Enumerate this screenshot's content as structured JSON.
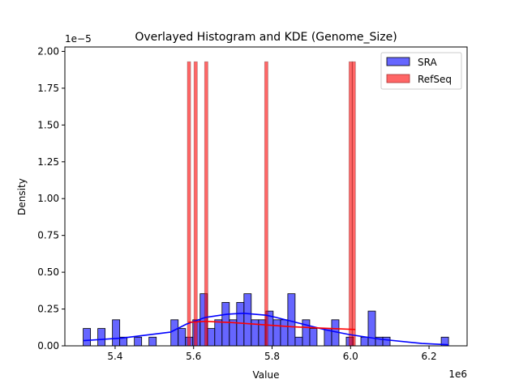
{
  "chart_data": {
    "type": "bar",
    "title": "Overlayed Histogram and KDE (Genome_Size)",
    "xlabel": "Value",
    "ylabel": "Density",
    "x_offset_label": "1e6",
    "y_offset_label": "1e−5",
    "xlim": [
      5.272,
      6.297
    ],
    "ylim": [
      0,
      2.03
    ],
    "xticks": [
      "5.4",
      "5.6",
      "5.8",
      "6.0",
      "6.2"
    ],
    "xtick_values": [
      5.4,
      5.6,
      5.8,
      6.0,
      6.2
    ],
    "yticks": [
      "0.00",
      "0.25",
      "0.50",
      "0.75",
      "1.00",
      "1.25",
      "1.50",
      "1.75",
      "2.00"
    ],
    "ytick_values": [
      0,
      0.25,
      0.5,
      0.75,
      1.0,
      1.25,
      1.5,
      1.75,
      2.0
    ],
    "grid": false,
    "legend_position": "top-right",
    "series": [
      {
        "name": "SRA",
        "color": "#0000ff",
        "bin_start": 5.3187,
        "bin_width": 0.01862,
        "density": [
          0.118,
          0,
          0.118,
          0,
          0.177,
          0.059,
          0,
          0.059,
          0,
          0.059,
          0,
          0,
          0.177,
          0.118,
          0.059,
          0.177,
          0.354,
          0.118,
          0.177,
          0.295,
          0.177,
          0.295,
          0.354,
          0.177,
          0.177,
          0.236,
          0.177,
          0.177,
          0.354,
          0.059,
          0.177,
          0.118,
          0,
          0.118,
          0.177,
          0,
          0.059,
          0,
          0.059,
          0.236,
          0.059,
          0.059,
          0,
          0,
          0,
          0,
          0,
          0,
          0,
          0.059
        ],
        "kde": [
          [
            5.319,
            0.035
          ],
          [
            5.417,
            0.053
          ],
          [
            5.541,
            0.093
          ],
          [
            5.582,
            0.148
          ],
          [
            5.63,
            0.193
          ],
          [
            5.686,
            0.215
          ],
          [
            5.727,
            0.221
          ],
          [
            5.785,
            0.208
          ],
          [
            5.81,
            0.193
          ],
          [
            5.878,
            0.148
          ],
          [
            5.934,
            0.11
          ],
          [
            5.996,
            0.077
          ],
          [
            6.079,
            0.044
          ],
          [
            6.182,
            0.016
          ],
          [
            6.25,
            0.007
          ]
        ]
      },
      {
        "name": "RefSeq",
        "color": "#ff0000",
        "bin_width": 0.0086,
        "bar_lefts": [
          5.584,
          5.601,
          5.628,
          5.781,
          5.996,
          6.004
        ],
        "bar_density": 1.93,
        "kde": [
          [
            5.587,
            0.16
          ],
          [
            5.63,
            0.166
          ],
          [
            5.7,
            0.158
          ],
          [
            5.785,
            0.142
          ],
          [
            5.85,
            0.13
          ],
          [
            5.93,
            0.12
          ],
          [
            6.012,
            0.111
          ]
        ]
      }
    ]
  }
}
